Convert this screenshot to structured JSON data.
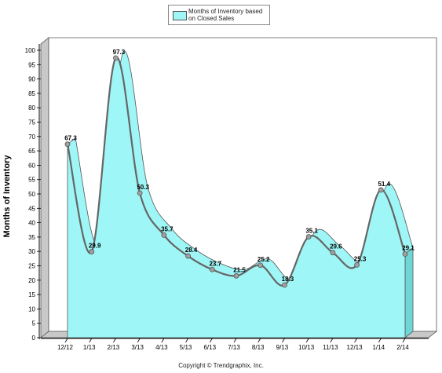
{
  "chart_data": {
    "type": "area",
    "categories": [
      "12/12",
      "1/13",
      "2/13",
      "3/13",
      "4/13",
      "5/13",
      "6/13",
      "7/13",
      "8/13",
      "9/13",
      "10/13",
      "11/13",
      "12/13",
      "1/14",
      "2/14"
    ],
    "series": [
      {
        "name": "Months of Inventory based on Closed Sales",
        "values": [
          67.3,
          29.9,
          97.3,
          50.3,
          35.7,
          28.4,
          23.7,
          21.5,
          25.2,
          18.3,
          35.1,
          29.6,
          25.3,
          51.4,
          29.1
        ]
      }
    ],
    "data_labels": [
      "67.3",
      "29.9",
      "97.3",
      "50.3",
      "35.7",
      "28.4",
      "23.7",
      "21.5",
      "25.2",
      "18.3",
      "35.1",
      "29.6",
      "25.3",
      "51.4",
      "29.1"
    ],
    "ylabel": "Months of Inventory",
    "ylim": [
      0,
      100
    ],
    "yticks": [
      0,
      5,
      10,
      15,
      20,
      25,
      30,
      35,
      40,
      45,
      50,
      55,
      60,
      65,
      70,
      75,
      80,
      85,
      90,
      95,
      100
    ],
    "grid": false,
    "legend_position": "top-center",
    "colors": {
      "fill": "#9ff6f6",
      "line": "#666666",
      "marker": "#a0a0a0",
      "wall": "#c8c8c8"
    }
  },
  "legend": {
    "label_line1": "Months of Inventory based",
    "label_line2": "on Closed Sales"
  },
  "footer": {
    "copyright": "Copyright © Trendgraphix, Inc."
  }
}
